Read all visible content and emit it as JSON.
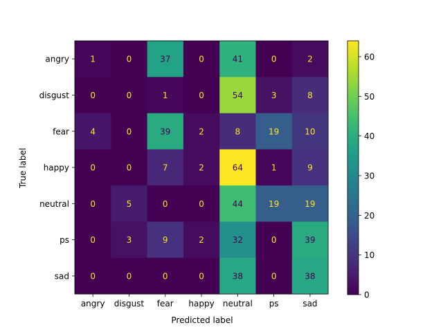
{
  "chart_data": {
    "type": "heatmap",
    "title": "",
    "xlabel": "Predicted label",
    "ylabel": "True label",
    "x_categories": [
      "angry",
      "disgust",
      "fear",
      "happy",
      "neutral",
      "ps",
      "sad"
    ],
    "y_categories": [
      "angry",
      "disgust",
      "fear",
      "happy",
      "neutral",
      "ps",
      "sad"
    ],
    "values": [
      [
        1,
        0,
        37,
        0,
        41,
        0,
        2
      ],
      [
        0,
        0,
        1,
        0,
        54,
        3,
        8
      ],
      [
        4,
        0,
        39,
        2,
        8,
        19,
        10
      ],
      [
        0,
        0,
        7,
        2,
        64,
        1,
        9
      ],
      [
        0,
        5,
        0,
        0,
        44,
        19,
        19
      ],
      [
        0,
        3,
        9,
        2,
        32,
        0,
        39
      ],
      [
        0,
        0,
        0,
        0,
        38,
        0,
        38
      ]
    ],
    "colormap": "viridis",
    "colorbar": {
      "range": [
        0,
        64
      ],
      "ticks": [
        0,
        10,
        20,
        30,
        40,
        50,
        60
      ]
    },
    "text_colors": {
      "light": "#fde725",
      "dark": "#440154"
    }
  }
}
